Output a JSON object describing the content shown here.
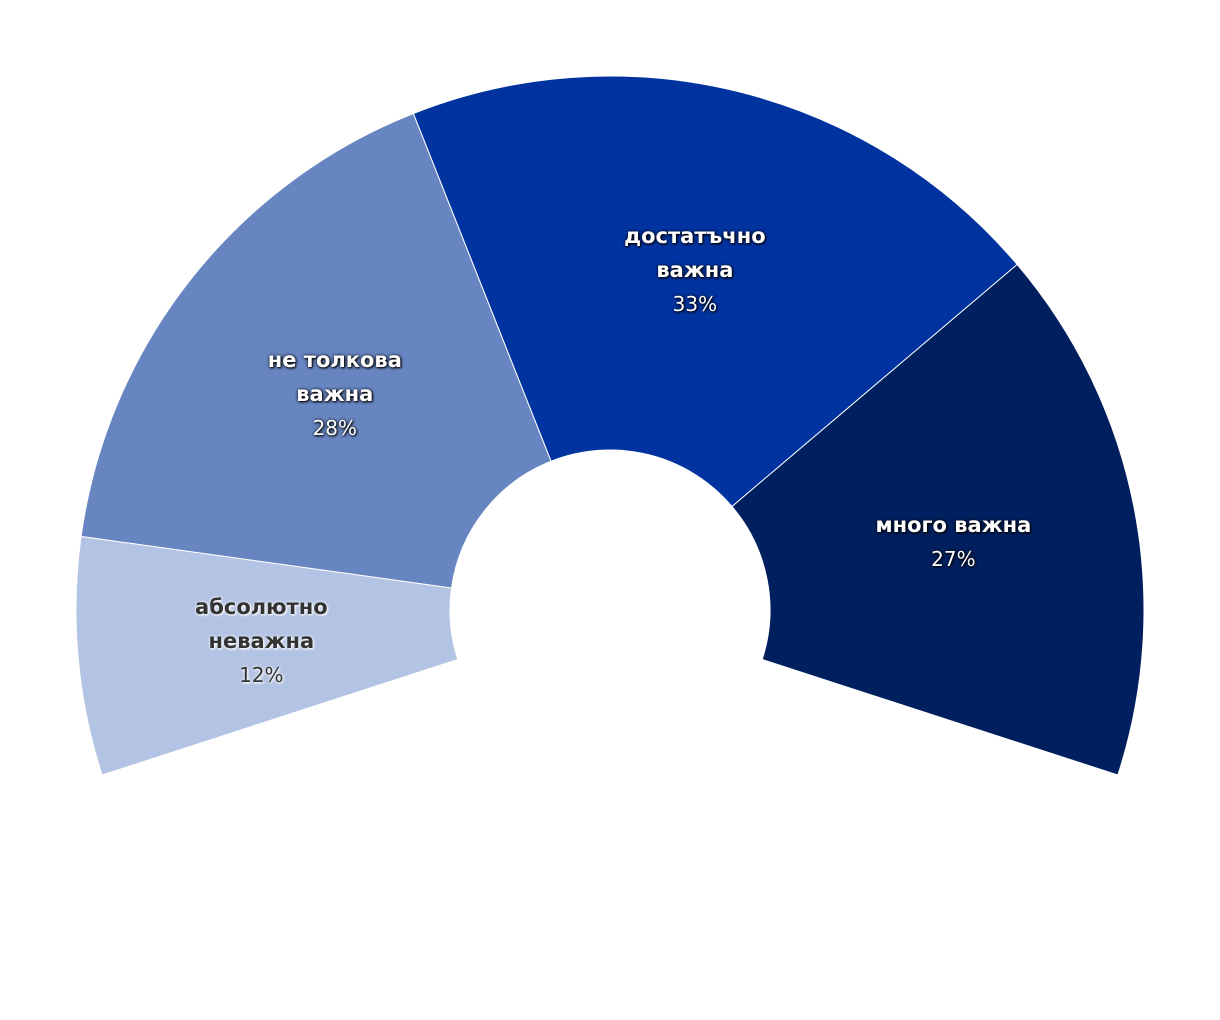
{
  "chart_data": {
    "type": "pie",
    "categories": [
      "абсолютно неважна",
      "не толкова важна",
      "достатъчно важна",
      "много важна"
    ],
    "values": [
      12,
      28,
      33,
      27
    ],
    "value_labels": [
      "12%",
      "28%",
      "33%",
      "27%"
    ],
    "colors": [
      "#b3c3e3",
      "#6785c1",
      "#0033a0",
      "#001f5f"
    ]
  }
}
